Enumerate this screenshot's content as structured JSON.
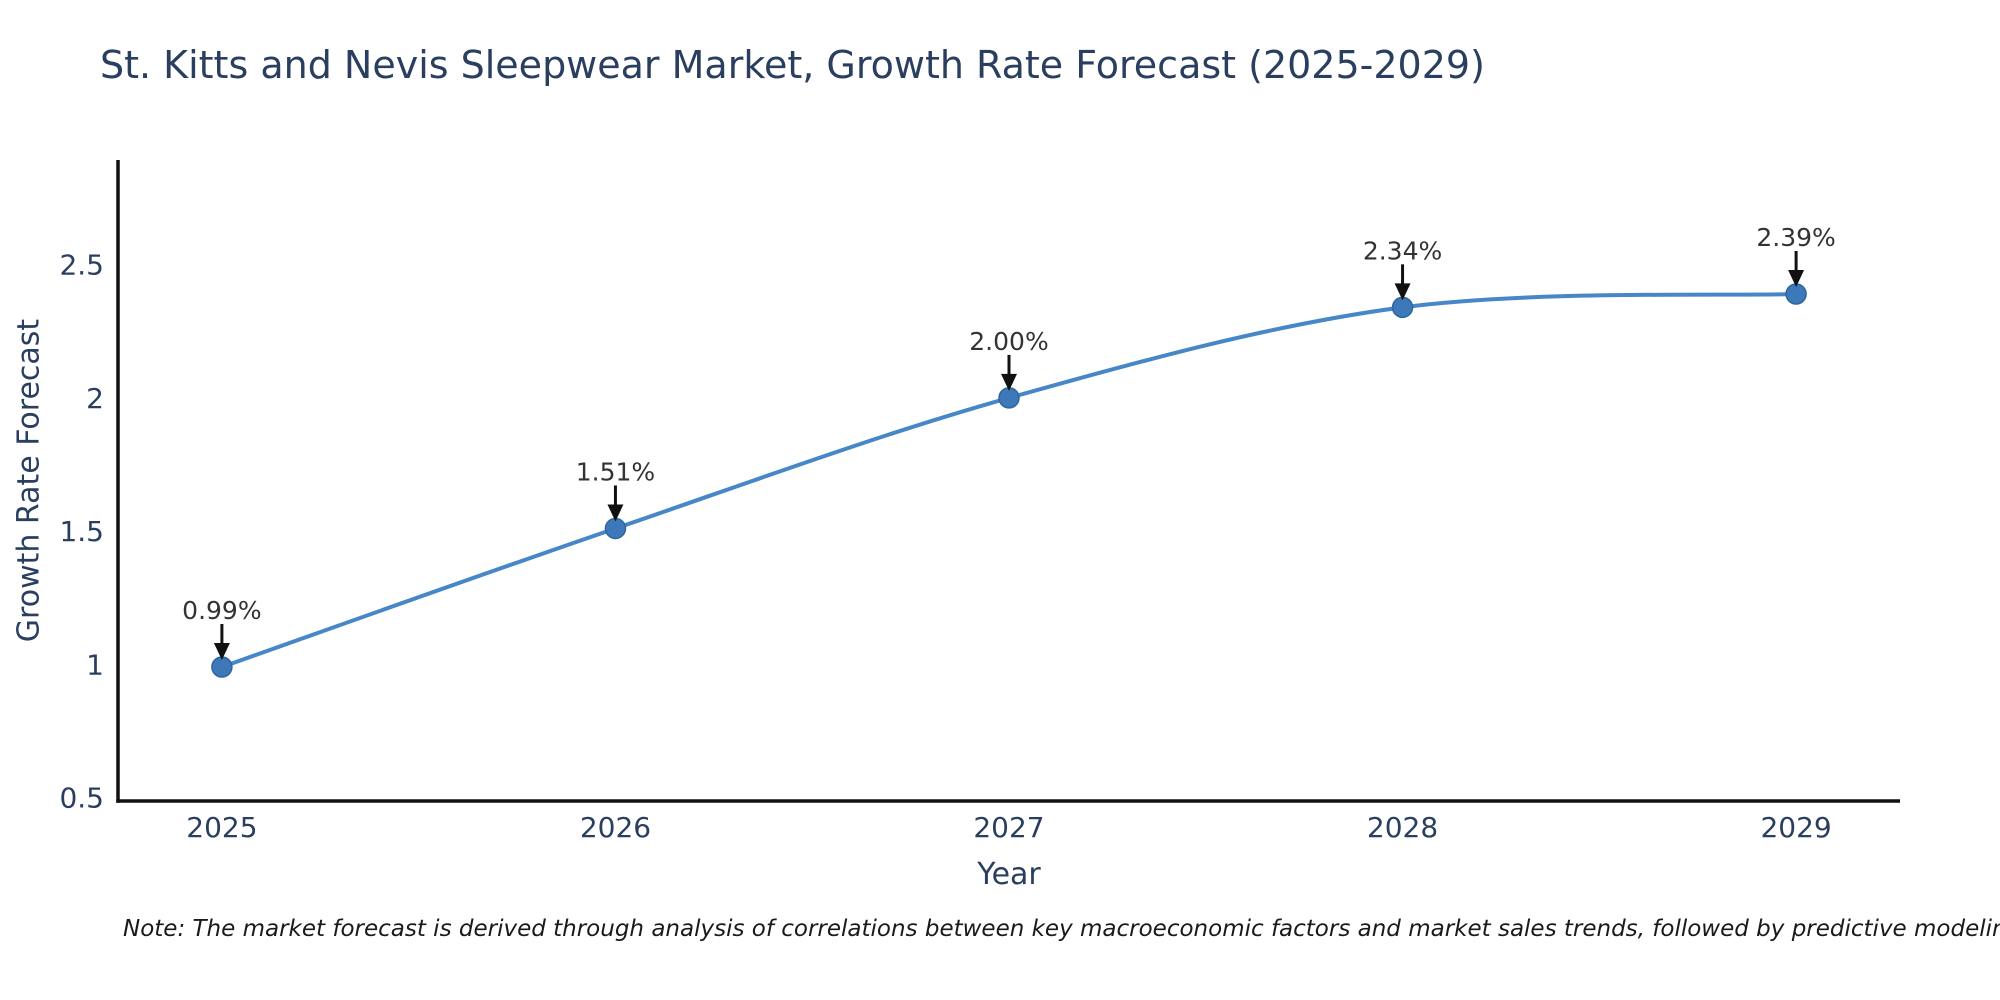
{
  "title": "St. Kitts and Nevis Sleepwear Market, Growth Rate Forecast (2025-2029)",
  "note": "Note: The market forecast is derived through analysis of correlations between key macroeconomic factors and market sales trends, followed by predictive modeling to project future sales",
  "colors": {
    "background": "#ffffff",
    "title_text": "#2a3f5f",
    "axis_text": "#2a3f5f",
    "axis_line": "#111111",
    "line": "#4787c7",
    "marker": "#3d79b8",
    "marker_edge": "#30659f",
    "annotation_text": "#333333",
    "arrow": "#111111",
    "note_text": "#1a1a1a"
  },
  "chart_data": {
    "type": "line",
    "title": "St. Kitts and Nevis Sleepwear Market, Growth Rate Forecast (2025-2029)",
    "xlabel": "Year",
    "ylabel": "Growth Rate Forecast",
    "x": [
      2025,
      2026,
      2027,
      2028,
      2029
    ],
    "values": [
      0.99,
      1.51,
      2.0,
      2.34,
      2.39
    ],
    "series_name": "Growth Rate Forecast",
    "point_labels": [
      "0.99%",
      "1.51%",
      "2.00%",
      "2.34%",
      "2.39%"
    ],
    "x_tick_labels": [
      "2025",
      "2026",
      "2027",
      "2028",
      "2029"
    ],
    "y_ticks": [
      0.5,
      1.0,
      1.5,
      2.0,
      2.5
    ],
    "y_tick_labels": [
      "0.5",
      "1",
      "1.5",
      "2",
      "2.5"
    ],
    "xlim": [
      2024.736,
      2029.264
    ],
    "ylim": [
      0.487,
      2.893
    ],
    "grid": false,
    "legend_position": "none",
    "line_shape": "spline",
    "markers": true
  }
}
